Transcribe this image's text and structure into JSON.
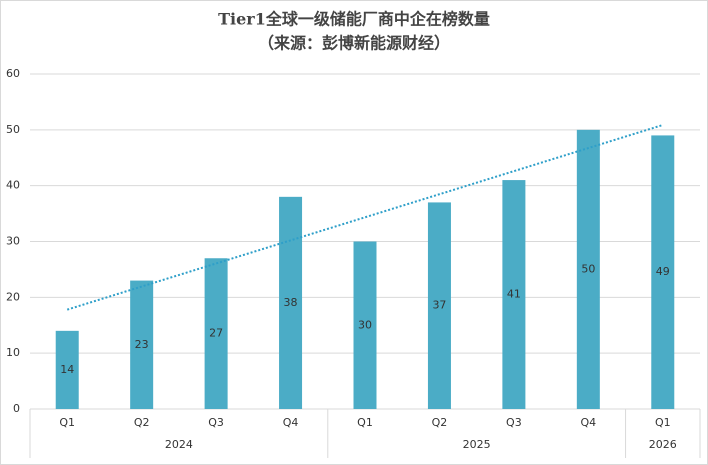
{
  "chart_data": {
    "type": "bar",
    "title": "Tier1全球一级储能厂商中企在榜数量",
    "subtitle": "（来源：彭博新能源财经）",
    "groups": [
      {
        "name": "2024",
        "categories": [
          "Q1",
          "Q2",
          "Q3",
          "Q4"
        ]
      },
      {
        "name": "2025",
        "categories": [
          "Q1",
          "Q2",
          "Q3",
          "Q4"
        ]
      },
      {
        "name": "2026",
        "categories": [
          "Q1"
        ]
      }
    ],
    "values": [
      14,
      23,
      27,
      38,
      30,
      37,
      41,
      50,
      49
    ],
    "color": "#4bacc6",
    "trendline": true,
    "trend_color": "#2e9fc9",
    "ylim": [
      0,
      60
    ],
    "yticks": [
      0,
      10,
      20,
      30,
      40,
      50,
      60
    ],
    "grid": true
  }
}
